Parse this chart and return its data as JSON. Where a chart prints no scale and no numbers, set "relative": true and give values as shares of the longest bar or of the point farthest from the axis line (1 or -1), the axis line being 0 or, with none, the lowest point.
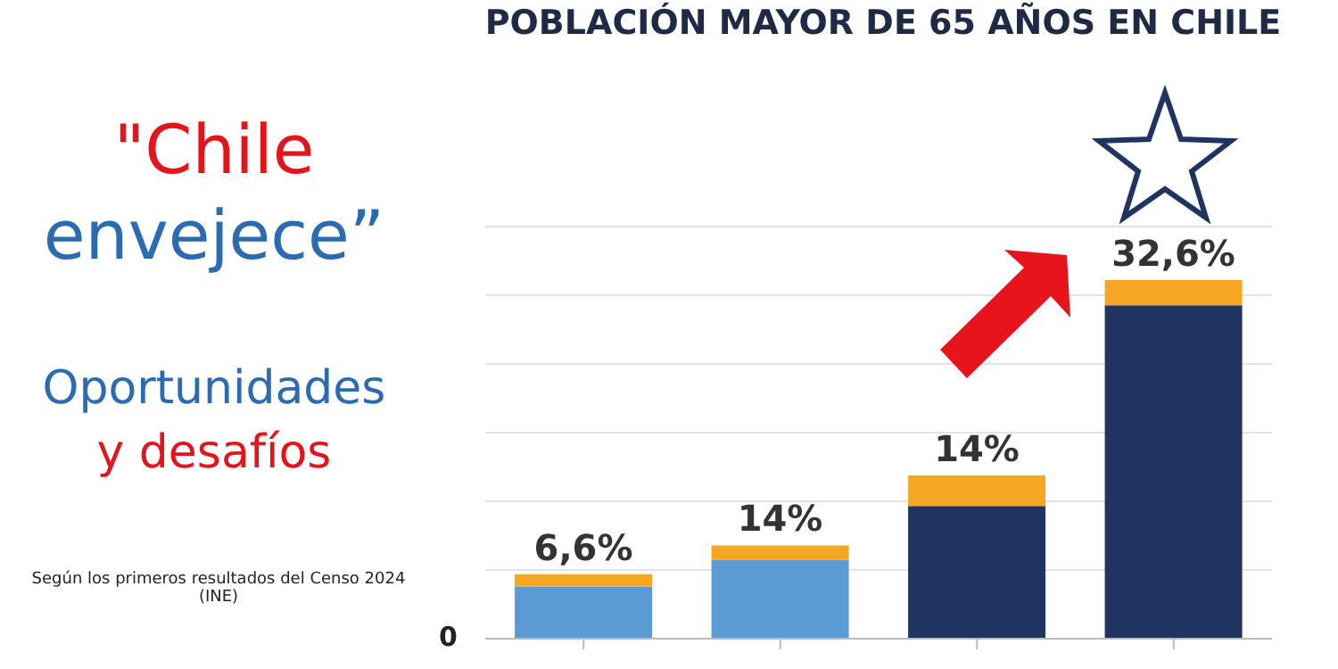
{
  "chart_data": {
    "type": "bar",
    "title": "POBLACIÓN MAYOR DE 65 AÑOS EN CHILE",
    "relative": true,
    "stacked": true,
    "grid": "y",
    "categories": [
      null,
      null,
      null,
      null
    ],
    "series": [
      {
        "colors": [
          "#5b9bd5",
          "#5b9bd5",
          "#1f3461",
          "#1f3461"
        ],
        "values": [
          0.145,
          0.22,
          0.37,
          0.93
        ]
      },
      {
        "color": "#f5a623",
        "values": [
          0.035,
          0.04,
          0.085,
          0.07
        ]
      }
    ],
    "annotations": [
      "\"Chile envejece”",
      "Oportunidades y desafíos",
      "Según los primeros resultados del Censo 2024 (INE)",
      "0",
      "6,6%",
      "14%",
      "14%",
      "32,6%"
    ]
  }
}
